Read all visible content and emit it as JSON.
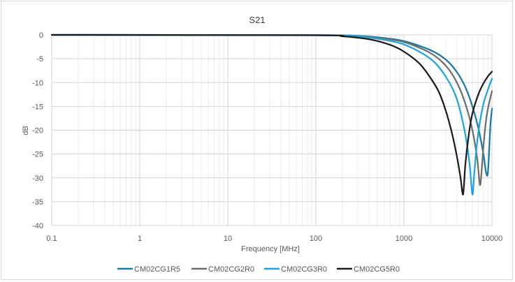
{
  "chart_data": {
    "type": "line",
    "title": "S21",
    "xlabel": "Frequency [MHz]",
    "ylabel": "dB",
    "x_scale": "log",
    "xlim": [
      0.1,
      10000
    ],
    "ylim": [
      -40,
      0
    ],
    "x_ticks": [
      0.1,
      1,
      10,
      100,
      1000,
      10000
    ],
    "x_tick_labels": [
      "0.1",
      "1",
      "10",
      "100",
      "1000",
      "10000"
    ],
    "y_ticks": [
      0,
      -5,
      -10,
      -15,
      -20,
      -25,
      -30,
      -35,
      -40
    ],
    "y_tick_labels": [
      "0",
      "-5",
      "-10",
      "-15",
      "-20",
      "-25",
      "-30",
      "-35",
      "-40"
    ],
    "grid": true,
    "legend_position": "bottom",
    "series": [
      {
        "name": "CM02CG1R5",
        "color": "#1a7aa3",
        "x": [
          0.1,
          100,
          300,
          500,
          1000,
          2000,
          3000,
          4000,
          5000,
          6000,
          7000,
          8000,
          8500,
          8900,
          9200,
          9600,
          10000
        ],
        "y": [
          0,
          -0.05,
          -0.2,
          -0.5,
          -1.3,
          -3.2,
          -5.2,
          -7.8,
          -11,
          -15,
          -19.5,
          -25,
          -28.5,
          -29.5,
          -26,
          -19,
          -15.5
        ]
      },
      {
        "name": "CM02CG2R0",
        "color": "#6d6d6d",
        "x": [
          0.1,
          100,
          300,
          500,
          1000,
          2000,
          3000,
          4000,
          5000,
          6000,
          6800,
          7300,
          7600,
          8000,
          8500,
          9000,
          10000
        ],
        "y": [
          0,
          -0.05,
          -0.25,
          -0.6,
          -1.5,
          -3.8,
          -6.5,
          -10,
          -14.5,
          -20,
          -26,
          -31.5,
          -29,
          -23.5,
          -18.5,
          -15.5,
          -11.8
        ]
      },
      {
        "name": "CM02CG3R0",
        "color": "#1fa3dc",
        "x": [
          0.1,
          100,
          300,
          500,
          1000,
          2000,
          3000,
          4000,
          5000,
          5600,
          6000,
          6300,
          6700,
          7200,
          8000,
          9000,
          10000
        ],
        "y": [
          0,
          -0.05,
          -0.3,
          -0.8,
          -2,
          -5,
          -8.8,
          -13.5,
          -21,
          -27.5,
          -33.5,
          -29,
          -23.5,
          -19,
          -14.5,
          -11.5,
          -9.2
        ]
      },
      {
        "name": "CM02CG5R0",
        "color": "#1c1c1c",
        "x": [
          0.1,
          100,
          200,
          400,
          700,
          1000,
          1500,
          2000,
          2500,
          3000,
          3500,
          4000,
          4400,
          4700,
          5000,
          5500,
          6000,
          7000,
          8000,
          9000,
          10000
        ],
        "y": [
          0,
          -0.08,
          -0.3,
          -0.9,
          -2.1,
          -3.5,
          -6,
          -9,
          -12,
          -16,
          -20.5,
          -25.5,
          -30,
          -33.5,
          -27,
          -20.5,
          -16.5,
          -12.5,
          -10.2,
          -8.7,
          -7.7
        ]
      }
    ]
  }
}
